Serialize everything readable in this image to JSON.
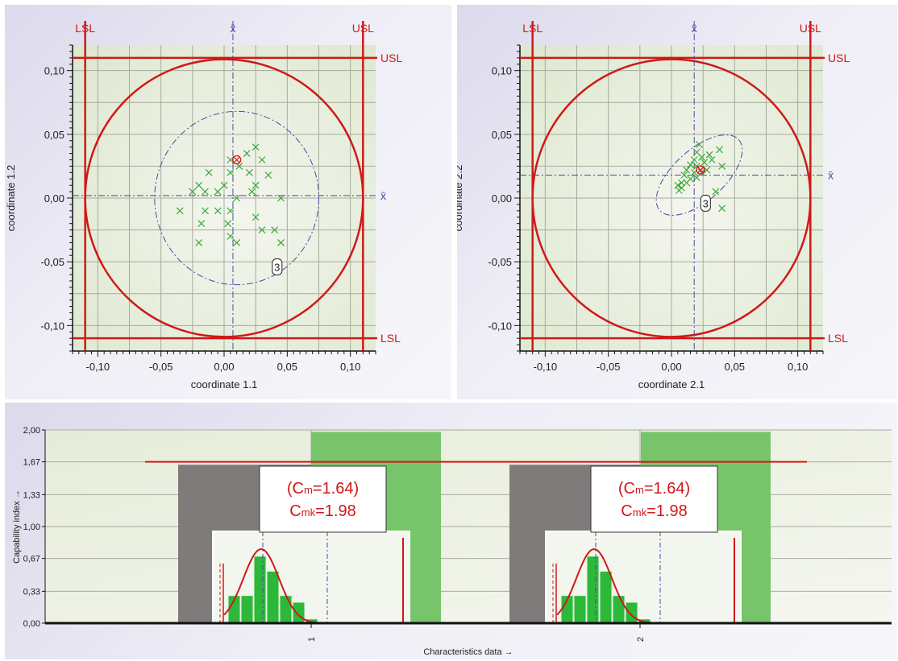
{
  "chart_data": [
    {
      "type": "scatter",
      "xlabel": "coordinate 1.1",
      "ylabel": "coordinate 1.2",
      "xlim": [
        -0.12,
        0.12
      ],
      "ylim": [
        -0.12,
        0.12
      ],
      "xticks": [
        "-0,10",
        "-0,05",
        "0,00",
        "0,05",
        "0,10"
      ],
      "yticks": [
        "-0,10",
        "-0,05",
        "0,00",
        "0,05",
        "0,10"
      ],
      "tick_values": [
        -0.1,
        -0.05,
        0.0,
        0.05,
        0.1
      ],
      "limits": {
        "LSL": -0.11,
        "USL": 0.11,
        "lsl_label": "LSL",
        "usl_label": "USL"
      },
      "tolerance_circle_radius": 0.11,
      "mean": {
        "x": 0.007,
        "y": 0.002,
        "label": "x̄"
      },
      "target": {
        "x": 0.01,
        "y": 0.03
      },
      "ellipse": {
        "cx": 0.01,
        "cy": 0.0,
        "rx": 0.065,
        "ry": 0.068,
        "angle": 0
      },
      "marker": {
        "x": 0.042,
        "y": -0.054,
        "label": "3"
      },
      "grid": true,
      "points": [
        [
          0.025,
          0.04
        ],
        [
          0.018,
          0.035
        ],
        [
          0.03,
          0.03
        ],
        [
          0.005,
          0.03
        ],
        [
          0.012,
          0.025
        ],
        [
          0.02,
          0.02
        ],
        [
          0.035,
          0.018
        ],
        [
          -0.012,
          0.02
        ],
        [
          0.005,
          0.02
        ],
        [
          0.025,
          0.01
        ],
        [
          -0.02,
          0.01
        ],
        [
          0.0,
          0.01
        ],
        [
          0.022,
          0.005
        ],
        [
          -0.025,
          0.005
        ],
        [
          -0.015,
          0.005
        ],
        [
          -0.005,
          0.005
        ],
        [
          0.01,
          0.0
        ],
        [
          0.045,
          0.0
        ],
        [
          -0.035,
          -0.01
        ],
        [
          -0.015,
          -0.01
        ],
        [
          -0.005,
          -0.01
        ],
        [
          0.005,
          -0.01
        ],
        [
          0.025,
          -0.015
        ],
        [
          -0.018,
          -0.02
        ],
        [
          0.003,
          -0.02
        ],
        [
          0.03,
          -0.025
        ],
        [
          0.04,
          -0.025
        ],
        [
          0.005,
          -0.03
        ],
        [
          -0.02,
          -0.035
        ],
        [
          0.01,
          -0.035
        ],
        [
          0.045,
          -0.035
        ]
      ]
    },
    {
      "type": "scatter",
      "xlabel": "coordinate 2.1",
      "ylabel": "coordinate 2.2",
      "xlim": [
        -0.12,
        0.12
      ],
      "ylim": [
        -0.12,
        0.12
      ],
      "xticks": [
        "-0,10",
        "-0,05",
        "0,00",
        "0,05",
        "0,10"
      ],
      "yticks": [
        "-0,10",
        "-0,05",
        "0,00",
        "0,05",
        "0,10"
      ],
      "tick_values": [
        -0.1,
        -0.05,
        0.0,
        0.05,
        0.1
      ],
      "limits": {
        "LSL": -0.11,
        "USL": 0.11,
        "lsl_label": "LSL",
        "usl_label": "USL"
      },
      "tolerance_circle_radius": 0.11,
      "mean": {
        "x": 0.018,
        "y": 0.018,
        "label": "x̄"
      },
      "target": {
        "x": 0.023,
        "y": 0.022
      },
      "ellipse": {
        "cx": 0.022,
        "cy": 0.018,
        "rx": 0.042,
        "ry": 0.02,
        "angle": 42
      },
      "marker": {
        "x": 0.027,
        "y": -0.004,
        "label": "3"
      },
      "grid": true,
      "points": [
        [
          0.022,
          0.042
        ],
        [
          0.02,
          0.036
        ],
        [
          0.038,
          0.038
        ],
        [
          0.03,
          0.034
        ],
        [
          0.024,
          0.032
        ],
        [
          0.018,
          0.03
        ],
        [
          0.032,
          0.03
        ],
        [
          0.026,
          0.028
        ],
        [
          0.015,
          0.026
        ],
        [
          0.02,
          0.025
        ],
        [
          0.04,
          0.025
        ],
        [
          0.012,
          0.022
        ],
        [
          0.028,
          0.022
        ],
        [
          0.018,
          0.02
        ],
        [
          0.024,
          0.02
        ],
        [
          0.01,
          0.018
        ],
        [
          0.02,
          0.016
        ],
        [
          0.015,
          0.015
        ],
        [
          0.008,
          0.012
        ],
        [
          0.012,
          0.012
        ],
        [
          0.005,
          0.01
        ],
        [
          0.008,
          0.008
        ],
        [
          0.006,
          0.006
        ],
        [
          0.035,
          0.005
        ],
        [
          0.04,
          -0.008
        ]
      ]
    },
    {
      "type": "bar",
      "xlabel": "Characteristics data →",
      "ylabel": "Capability index →",
      "ylim": [
        0,
        2.0
      ],
      "yticks": [
        0.0,
        0.33,
        0.67,
        1.0,
        1.33,
        1.67,
        2.0
      ],
      "ytick_labels": [
        "0,00",
        "0,33",
        "0,67",
        "1,00",
        "1,33",
        "1,67",
        "2,00"
      ],
      "xticks": [
        "1",
        "2"
      ],
      "reference_line": 1.67,
      "grid": true,
      "groups": [
        {
          "category": "1",
          "cm": 1.64,
          "cmk": 1.98,
          "label_cm": "(Cm=1.64)",
          "label_cmk": "Cmk=1.98",
          "cm_text": "C",
          "cm_sub": "m",
          "cm_value": "=1.64)",
          "cmk_text": "C",
          "cmk_sub": "mk",
          "cmk_value": "=1.98",
          "histogram": [
            0.33,
            0.33,
            0.8,
            0.62,
            0.33,
            0.25,
            0.05
          ]
        },
        {
          "category": "2",
          "cm": 1.64,
          "cmk": 1.98,
          "label_cm": "(Cm=1.64)",
          "label_cmk": "Cmk=1.98",
          "cm_text": "C",
          "cm_sub": "m",
          "cm_value": "=1.64)",
          "cmk_text": "C",
          "cmk_sub": "mk",
          "cmk_value": "=1.98",
          "histogram": [
            0.33,
            0.33,
            0.8,
            0.62,
            0.33,
            0.25,
            0.05
          ]
        }
      ],
      "colors": {
        "cm_bar": "#7f7b7b",
        "cmk_bar": "#78c46a",
        "limit": "#d01818",
        "mean": "#4a4aa8",
        "points": "#3aa83a",
        "hist": "#2db83a"
      }
    }
  ]
}
